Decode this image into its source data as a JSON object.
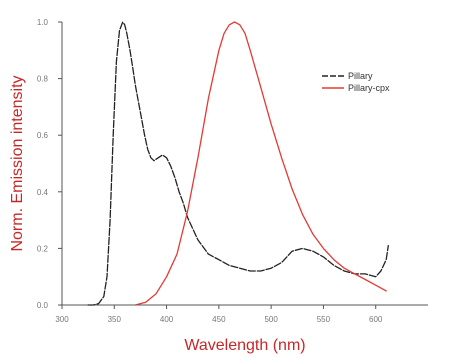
{
  "chart_data": {
    "type": "line",
    "title": "",
    "xlabel": "Wavelength (nm)",
    "ylabel": "Norm. Emission intensity",
    "xlim": [
      300,
      650
    ],
    "ylim": [
      0.0,
      1.0
    ],
    "xticks": [
      "300",
      "350",
      "400",
      "450",
      "500",
      "550",
      "600"
    ],
    "xtick_values": [
      300,
      350,
      400,
      450,
      500,
      550,
      600
    ],
    "yticks": [
      "0.0",
      "0.2",
      "0.4",
      "0.6",
      "0.8",
      "1.0"
    ],
    "ytick_values": [
      0.0,
      0.2,
      0.4,
      0.6,
      0.8,
      1.0
    ],
    "legend_position": "top-right",
    "grid": false,
    "series": [
      {
        "name": "Pillary",
        "color": "#222222",
        "dash": true,
        "x": [
          325,
          330,
          335,
          340,
          343,
          346,
          349,
          352,
          355,
          358,
          360,
          362,
          365,
          368,
          370,
          373,
          376,
          379,
          382,
          385,
          388,
          392,
          396,
          400,
          404,
          408,
          412,
          416,
          420,
          425,
          430,
          440,
          450,
          460,
          470,
          480,
          490,
          500,
          510,
          520,
          530,
          540,
          550,
          560,
          570,
          580,
          590,
          600,
          605,
          610,
          612
        ],
        "y": [
          0.0,
          0.0,
          0.005,
          0.03,
          0.1,
          0.3,
          0.6,
          0.86,
          0.97,
          1.0,
          0.99,
          0.96,
          0.9,
          0.83,
          0.78,
          0.72,
          0.66,
          0.6,
          0.55,
          0.52,
          0.51,
          0.52,
          0.53,
          0.52,
          0.49,
          0.45,
          0.4,
          0.36,
          0.31,
          0.27,
          0.23,
          0.18,
          0.16,
          0.14,
          0.13,
          0.12,
          0.12,
          0.13,
          0.15,
          0.19,
          0.2,
          0.19,
          0.17,
          0.14,
          0.12,
          0.11,
          0.11,
          0.1,
          0.12,
          0.16,
          0.21
        ]
      },
      {
        "name": "Pillary-cpx",
        "color": "#e53935",
        "dash": false,
        "x": [
          370,
          380,
          390,
          400,
          410,
          420,
          430,
          440,
          450,
          455,
          460,
          465,
          470,
          475,
          480,
          490,
          500,
          510,
          520,
          530,
          540,
          550,
          560,
          570,
          580,
          590,
          600,
          610
        ],
        "y": [
          0.0,
          0.01,
          0.04,
          0.1,
          0.18,
          0.33,
          0.52,
          0.73,
          0.9,
          0.96,
          0.99,
          1.0,
          0.99,
          0.96,
          0.9,
          0.77,
          0.64,
          0.52,
          0.41,
          0.32,
          0.25,
          0.2,
          0.16,
          0.13,
          0.11,
          0.09,
          0.07,
          0.05
        ]
      }
    ]
  }
}
